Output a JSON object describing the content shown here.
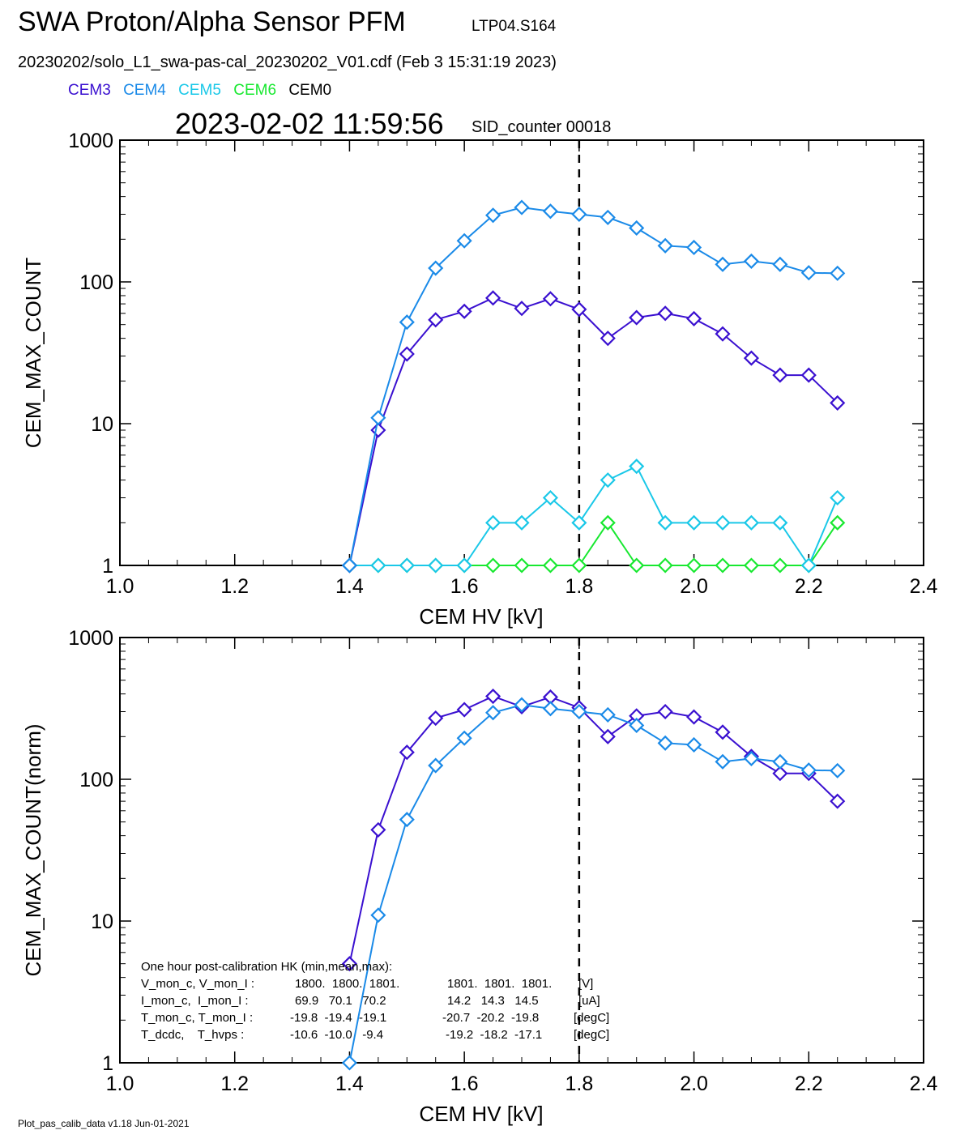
{
  "header": {
    "title": "SWA Proton/Alpha Sensor PFM",
    "subtitle": "LTP04.S164",
    "file_line": "20230202/solo_L1_swa-pas-cal_20230202_V01.cdf  (Feb  3 15:31:19 2023)",
    "timestamp": "2023-02-02 11:59:56",
    "sid": "SID_counter 00018"
  },
  "legend": [
    {
      "name": "CEM3",
      "color": "#3a10d0"
    },
    {
      "name": "CEM4",
      "color": "#1a8ae8"
    },
    {
      "name": "CEM5",
      "color": "#1ac8e8"
    },
    {
      "name": "CEM6",
      "color": "#18e830"
    },
    {
      "name": "CEM0",
      "color": "#000000"
    }
  ],
  "hk": {
    "heading": "One hour post-calibration HK (min,mean,max):",
    "rows": [
      {
        "label": "V_mon_c, V_mon_I :",
        "c": "1800.  1800.  1801.",
        "i": "1801.  1801.  1801.",
        "unit": "[V]"
      },
      {
        "label": "I_mon_c,  I_mon_I :",
        "c": "69.9   70.1   70.2",
        "i": "14.2   14.3   14.5",
        "unit": "[uA]"
      },
      {
        "label": "T_mon_c, T_mon_I :",
        "c": "-19.8  -19.4  -19.1",
        "i": "-20.7  -20.2  -19.8",
        "unit": "[degC]"
      },
      {
        "label": "T_dcdc,    T_hvps :",
        "c": "-10.6  -10.0   -9.4",
        "i": "-19.2  -18.2  -17.1",
        "unit": "[degC]"
      }
    ]
  },
  "footer": "Plot_pas_calib_data v1.18 Jun-01-2021",
  "chart_data": [
    {
      "type": "line",
      "xlabel": "CEM HV [kV]",
      "ylabel": "CEM_MAX_COUNT",
      "xlim": [
        1.0,
        2.4
      ],
      "ylim": [
        1,
        1000
      ],
      "yscale": "log",
      "x_ticks": [
        "1.0",
        "1.2",
        "1.4",
        "1.6",
        "1.8",
        "2.0",
        "2.2",
        "2.4"
      ],
      "y_ticks": [
        "1",
        "10",
        "100",
        "1000"
      ],
      "vline": 1.8,
      "x": [
        1.4,
        1.45,
        1.5,
        1.55,
        1.6,
        1.65,
        1.7,
        1.75,
        1.8,
        1.85,
        1.9,
        1.95,
        2.0,
        2.05,
        2.1,
        2.15,
        2.2,
        2.25
      ],
      "series": [
        {
          "name": "CEM4",
          "color": "#1a8ae8",
          "values": [
            1,
            11,
            52,
            125,
            195,
            295,
            335,
            315,
            300,
            285,
            240,
            180,
            175,
            133,
            140,
            133,
            116,
            115
          ]
        },
        {
          "name": "CEM3",
          "color": "#3a10d0",
          "values": [
            1,
            9,
            31,
            54,
            62,
            77,
            65,
            76,
            64,
            40,
            56,
            60,
            55,
            43,
            29,
            22,
            22,
            14
          ]
        },
        {
          "name": "CEM5",
          "color": "#1ac8e8",
          "values": [
            1,
            1,
            1,
            1,
            1,
            2,
            2,
            3,
            2,
            4,
            5,
            2,
            2,
            2,
            2,
            2,
            1,
            3
          ]
        },
        {
          "name": "CEM6",
          "color": "#18e830",
          "values": [
            1,
            1,
            1,
            1,
            1,
            1,
            1,
            1,
            1,
            2,
            1,
            1,
            1,
            1,
            1,
            1,
            1,
            2
          ]
        }
      ]
    },
    {
      "type": "line",
      "xlabel": "CEM HV [kV]",
      "ylabel": "CEM_MAX_COUNT(norm)",
      "xlim": [
        1.0,
        2.4
      ],
      "ylim": [
        1,
        1000
      ],
      "yscale": "log",
      "x_ticks": [
        "1.0",
        "1.2",
        "1.4",
        "1.6",
        "1.8",
        "2.0",
        "2.2",
        "2.4"
      ],
      "y_ticks": [
        "1",
        "10",
        "100",
        "1000"
      ],
      "vline": 1.8,
      "x": [
        1.4,
        1.45,
        1.5,
        1.55,
        1.6,
        1.65,
        1.7,
        1.75,
        1.8,
        1.85,
        1.9,
        1.95,
        2.0,
        2.05,
        2.1,
        2.15,
        2.2,
        2.25
      ],
      "series": [
        {
          "name": "CEM4",
          "color": "#1a8ae8",
          "values": [
            1,
            11,
            52,
            125,
            195,
            295,
            335,
            315,
            300,
            285,
            240,
            180,
            175,
            133,
            140,
            133,
            116,
            115
          ]
        },
        {
          "name": "CEM3",
          "color": "#3a10d0",
          "values": [
            5,
            44,
            155,
            270,
            310,
            385,
            325,
            380,
            320,
            200,
            280,
            300,
            275,
            215,
            145,
            110,
            110,
            70
          ]
        }
      ]
    }
  ]
}
